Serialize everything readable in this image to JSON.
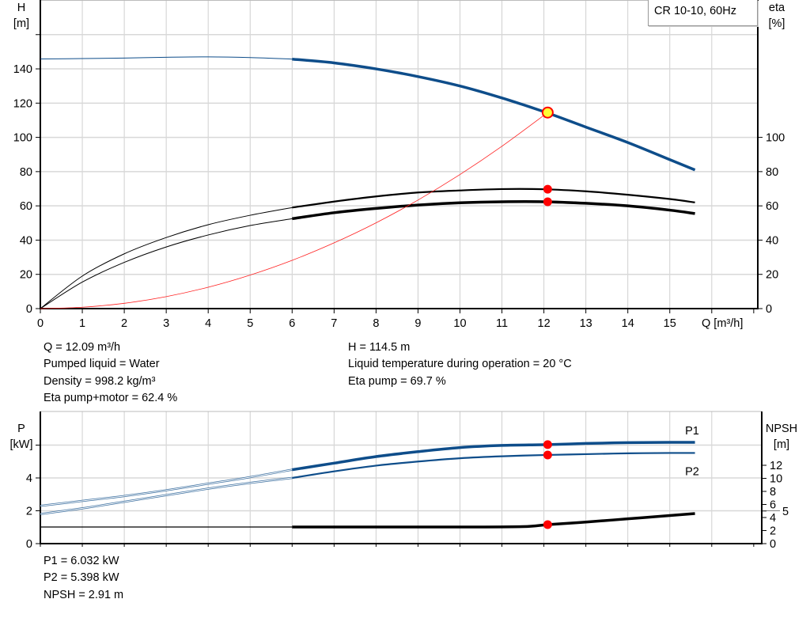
{
  "chart_data": [
    {
      "type": "line",
      "title": "",
      "legend": "CR 10-10, 60Hz",
      "xlabel": "Q [m³/h]",
      "ylabel": "H\n[m]",
      "ylabel_lines": [
        "H",
        "[m]"
      ],
      "y2label_lines": [
        "eta",
        "[%]"
      ],
      "xlim": [
        0,
        17.1
      ],
      "ylim": [
        0,
        180
      ],
      "y2lim": [
        0,
        180
      ],
      "xticks": [
        "0",
        "1",
        "2",
        "3",
        "4",
        "5",
        "6",
        "7",
        "8",
        "9",
        "10",
        "11",
        "12",
        "13",
        "14",
        "15"
      ],
      "yticks": [
        "0",
        "20",
        "40",
        "60",
        "80",
        "100",
        "120",
        "140"
      ],
      "y2ticks": [
        "0",
        "20",
        "40",
        "60",
        "80",
        "100"
      ],
      "grid": true,
      "series": [
        {
          "key": "H",
          "axis": "left",
          "color": "#0e4d8a",
          "x": [
            0,
            1,
            2,
            3,
            4,
            5,
            6,
            7,
            8,
            9,
            10,
            11,
            12,
            13,
            14,
            15,
            15.6
          ],
          "y": [
            145.8,
            146,
            146.3,
            146.8,
            147,
            146.6,
            145.7,
            143.5,
            140,
            135.5,
            130,
            123,
            115,
            106,
            97,
            87,
            81
          ]
        },
        {
          "key": "eta_pump",
          "axis": "right",
          "color": "#000000",
          "x": [
            0,
            1,
            2,
            3,
            4,
            5,
            6,
            7,
            8,
            9,
            10,
            11,
            12,
            13,
            14,
            15,
            15.6
          ],
          "y": [
            0,
            19,
            32,
            41.5,
            49,
            54.5,
            59,
            62.5,
            65.5,
            67.8,
            69,
            69.8,
            69.7,
            68.5,
            66.5,
            64,
            62
          ]
        },
        {
          "key": "eta_pump_motor",
          "axis": "right",
          "color": "#000000",
          "x": [
            0,
            1,
            2,
            3,
            4,
            5,
            6,
            7,
            8,
            9,
            10,
            11,
            12,
            13,
            14,
            15,
            15.6
          ],
          "y": [
            0,
            15.5,
            27,
            36,
            43,
            48.5,
            52.5,
            56,
            58.5,
            60.5,
            61.8,
            62.4,
            62.4,
            61.5,
            60,
            57.5,
            55.5
          ]
        },
        {
          "key": "system",
          "axis": "left",
          "color": "#ff2020",
          "x": [
            0,
            1,
            2,
            3,
            4,
            5,
            6,
            7,
            8,
            9,
            10,
            11,
            12.09
          ],
          "y": [
            0,
            0.8,
            3.1,
            7,
            12.5,
            19.6,
            28.2,
            38.4,
            50.1,
            63.4,
            78.3,
            94.8,
            114.5
          ]
        }
      ],
      "duty_points": [
        {
          "axis": "left",
          "x": 12.09,
          "y": 114.5,
          "color": "#ffff33"
        },
        {
          "axis": "right",
          "x": 12.09,
          "y": 69.7,
          "color": "#ff0000"
        },
        {
          "axis": "right",
          "x": 12.09,
          "y": 62.4,
          "color": "#ff0000"
        }
      ]
    },
    {
      "type": "line",
      "title": "",
      "ylabel_lines": [
        "P",
        "[kW]"
      ],
      "y2label_lines": [
        "NPSH",
        "[m]"
      ],
      "xlim": [
        0,
        17.1
      ],
      "ylim": [
        0,
        8
      ],
      "y2lim": [
        0,
        20
      ],
      "yticks": [
        "0",
        "2",
        "4"
      ],
      "y2ticks": [
        "0",
        "2",
        "4",
        "5",
        "6",
        "8",
        "10",
        "12"
      ],
      "grid": true,
      "series": [
        {
          "key": "P1",
          "name": "P1",
          "axis": "left",
          "color": "#0e4d8a",
          "x": [
            0,
            1,
            2,
            3,
            4,
            5,
            6,
            7,
            8,
            9,
            10,
            11,
            12.09,
            13,
            14,
            15,
            15.6
          ],
          "y": [
            2.3,
            2.6,
            2.9,
            3.25,
            3.65,
            4.05,
            4.5,
            4.9,
            5.3,
            5.6,
            5.85,
            5.98,
            6.03,
            6.1,
            6.15,
            6.17,
            6.17
          ]
        },
        {
          "key": "P2",
          "name": "P2",
          "axis": "left",
          "color": "#0e4d8a",
          "x": [
            0,
            1,
            2,
            3,
            4,
            5,
            6,
            7,
            8,
            9,
            10,
            11,
            12.09,
            13,
            14,
            15,
            15.6
          ],
          "y": [
            1.8,
            2.15,
            2.55,
            2.95,
            3.35,
            3.7,
            4.0,
            4.4,
            4.75,
            5.0,
            5.2,
            5.32,
            5.4,
            5.45,
            5.5,
            5.52,
            5.52
          ]
        },
        {
          "key": "NPSH",
          "axis": "right",
          "color": "#000000",
          "x": [
            0,
            2,
            4,
            6,
            8,
            10,
            11.5,
            12.09,
            13,
            14,
            15,
            15.6
          ],
          "y": [
            2.55,
            2.55,
            2.55,
            2.55,
            2.55,
            2.55,
            2.6,
            2.91,
            3.3,
            3.8,
            4.3,
            4.6
          ]
        }
      ],
      "duty_points": [
        {
          "axis": "left",
          "x": 12.09,
          "y": 6.032,
          "color": "#ff0000"
        },
        {
          "axis": "left",
          "x": 12.09,
          "y": 5.398,
          "color": "#ff0000"
        },
        {
          "axis": "right",
          "x": 12.09,
          "y": 2.91,
          "color": "#ff0000"
        }
      ]
    }
  ],
  "results_top": {
    "left": [
      "Q = 12.09 m³/h",
      "Pumped liquid = Water",
      "Density = 998.2 kg/m³",
      "Eta pump+motor = 62.4 %"
    ],
    "right": [
      "H = 114.5 m",
      "Liquid temperature during operation = 20 °C",
      "Eta pump = 69.7 %"
    ]
  },
  "results_bottom": [
    "P1 = 6.032 kW",
    "P2 = 5.398 kW",
    "NPSH = 2.91 m"
  ]
}
